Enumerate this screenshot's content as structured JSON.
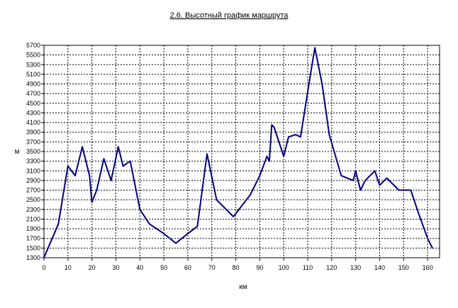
{
  "chart_data": {
    "type": "line",
    "title": "2.6. Высотный график маршрута",
    "xlabel": "км",
    "ylabel": "м",
    "xlim": [
      0,
      165
    ],
    "ylim": [
      1300,
      5700
    ],
    "x_ticks": [
      0,
      10,
      20,
      30,
      40,
      50,
      60,
      70,
      80,
      90,
      100,
      110,
      120,
      130,
      140,
      150,
      160
    ],
    "y_ticks": [
      1300,
      1500,
      1700,
      1900,
      2100,
      2300,
      2500,
      2700,
      2900,
      3100,
      3300,
      3500,
      3700,
      3900,
      4100,
      4300,
      4500,
      4700,
      4900,
      5100,
      5300,
      5500,
      5700
    ],
    "grid": true,
    "legend": "none",
    "line_color": "#000080",
    "series": [
      {
        "x": [
          0,
          6,
          10,
          13,
          16,
          19,
          20,
          22,
          25,
          28,
          31,
          33,
          36,
          40,
          44,
          50,
          55,
          60,
          64,
          68,
          72,
          79,
          86,
          90,
          93,
          94,
          95,
          96,
          100,
          102,
          105,
          107,
          111,
          113,
          116,
          119,
          124,
          129,
          130,
          132,
          134,
          136,
          138,
          140,
          143,
          148,
          153,
          156,
          160,
          162
        ],
        "y": [
          1300,
          2000,
          3200,
          3000,
          3600,
          3000,
          2450,
          2700,
          3350,
          2900,
          3600,
          3200,
          3300,
          2300,
          2000,
          1800,
          1600,
          1800,
          1950,
          3450,
          2500,
          2150,
          2600,
          3000,
          3400,
          3300,
          4050,
          4000,
          3400,
          3800,
          3850,
          3800,
          5050,
          5650,
          4900,
          3850,
          3000,
          2900,
          3100,
          2700,
          2900,
          3000,
          3100,
          2800,
          2950,
          2700,
          2700,
          2250,
          1700,
          1500
        ]
      }
    ]
  }
}
